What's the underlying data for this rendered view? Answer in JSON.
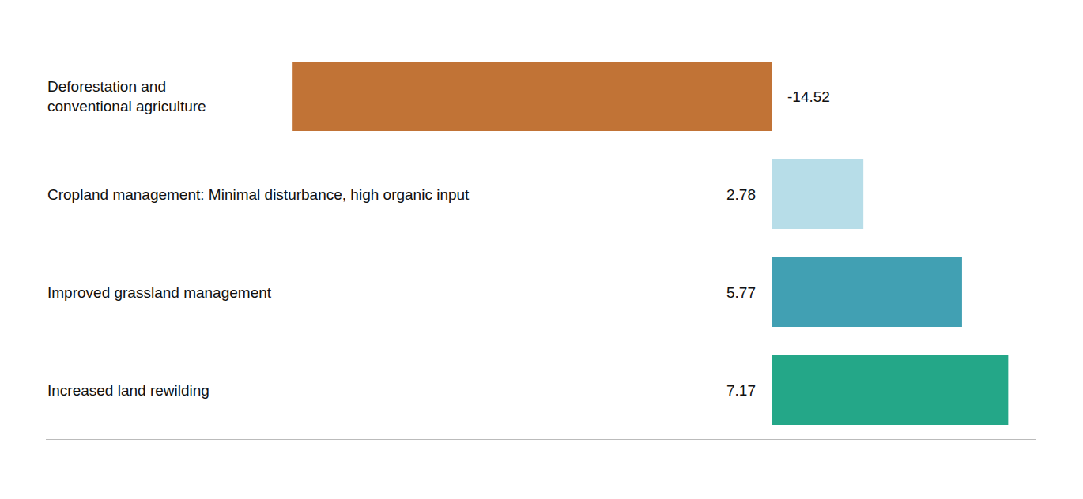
{
  "chart_data": {
    "type": "bar",
    "orientation": "horizontal",
    "categories": [
      "Deforestation and conventional agriculture",
      "Cropland management: Minimal disturbance, high organic input",
      "Improved grassland management",
      "Increased land rewilding"
    ],
    "values": [
      -14.52,
      2.78,
      5.77,
      7.17
    ],
    "colors": [
      "#c17336",
      "#b7dde8",
      "#41a0b3",
      "#24a788"
    ],
    "xlim": [
      -22,
      8
    ],
    "data_labels": true,
    "tick_labels": false,
    "grid": false
  }
}
